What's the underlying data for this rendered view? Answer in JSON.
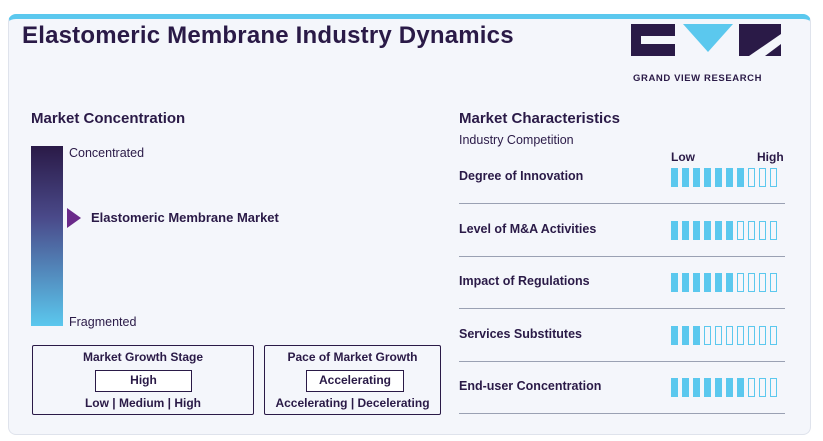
{
  "title": "Elastomeric Membrane Industry Dynamics",
  "logo": {
    "text": "GRAND VIEW RESEARCH",
    "colors": {
      "dark": "#2a1a47",
      "accent": "#5bc8ee"
    }
  },
  "concentration": {
    "heading": "Market Concentration",
    "top_label": "Concentrated",
    "bottom_label": "Fragmented",
    "market_label": "Elastomeric Membrane Market",
    "marker_level": 0.6,
    "gradient_colors": [
      "#2a1a47",
      "#5bc8ee"
    ]
  },
  "growth_stage": {
    "title": "Market Growth Stage",
    "value": "High",
    "options": "Low | Medium | High"
  },
  "growth_pace": {
    "title": "Pace of Market Growth",
    "value": "Accelerating",
    "options": "Accelerating | Decelerating"
  },
  "characteristics": {
    "heading": "Market Characteristics",
    "subheading": "Industry Competition",
    "low_label": "Low",
    "high_label": "High",
    "total_segments": 10,
    "rows": [
      {
        "label": "Degree of Innovation",
        "level": 7
      },
      {
        "label": "Level of M&A Activities",
        "level": 6
      },
      {
        "label": "Impact of Regulations",
        "level": 6
      },
      {
        "label": "Services Substitutes",
        "level": 3
      },
      {
        "label": "End-user Concentration",
        "level": 7
      }
    ]
  }
}
